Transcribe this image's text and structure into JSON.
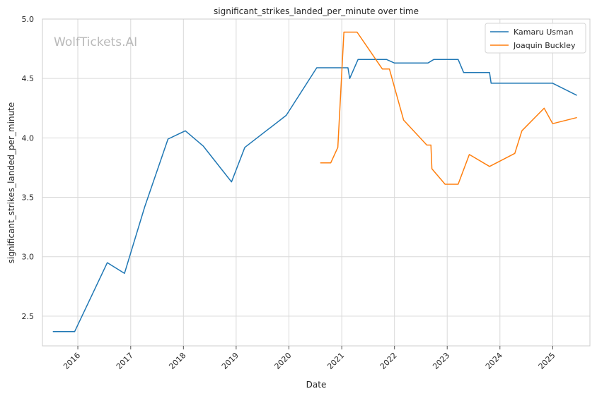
{
  "watermark": "WolfTickets.AI",
  "chart_data": {
    "type": "line",
    "title": "significant_strikes_landed_per_minute over time",
    "xlabel": "Date",
    "ylabel": "significant_strikes_landed_per_minute",
    "xlim": [
      "2015-05-01",
      "2025-09-15"
    ],
    "ylim": [
      2.25,
      5.0
    ],
    "x_ticks": [
      "2016",
      "2017",
      "2018",
      "2019",
      "2020",
      "2021",
      "2022",
      "2023",
      "2024",
      "2025"
    ],
    "y_ticks": [
      "2.5",
      "3.0",
      "3.5",
      "4.0",
      "4.5",
      "5.0"
    ],
    "grid": true,
    "legend_position": "top-right",
    "series": [
      {
        "name": "Kamaru Usman",
        "color": "#1f77b4",
        "points": [
          [
            "2015-07-15",
            2.37
          ],
          [
            "2015-12-10",
            2.37
          ],
          [
            "2016-07-23",
            2.95
          ],
          [
            "2016-11-19",
            2.86
          ],
          [
            "2017-04-08",
            3.42
          ],
          [
            "2017-09-16",
            3.99
          ],
          [
            "2018-01-14",
            4.06
          ],
          [
            "2018-05-19",
            3.93
          ],
          [
            "2018-11-30",
            3.63
          ],
          [
            "2019-03-02",
            3.92
          ],
          [
            "2019-12-14",
            4.19
          ],
          [
            "2020-07-12",
            4.59
          ],
          [
            "2021-02-13",
            4.59
          ],
          [
            "2021-02-25",
            4.5
          ],
          [
            "2021-04-24",
            4.66
          ],
          [
            "2021-11-06",
            4.66
          ],
          [
            "2022-01-01",
            4.63
          ],
          [
            "2022-08-20",
            4.63
          ],
          [
            "2022-10-01",
            4.66
          ],
          [
            "2023-03-18",
            4.66
          ],
          [
            "2023-04-25",
            4.55
          ],
          [
            "2023-10-21",
            4.55
          ],
          [
            "2023-11-01",
            4.46
          ],
          [
            "2024-12-31",
            4.46
          ],
          [
            "2025-06-14",
            4.36
          ]
        ]
      },
      {
        "name": "Joaquin Buckley",
        "color": "#ff7f0e",
        "points": [
          [
            "2020-08-08",
            3.79
          ],
          [
            "2020-10-17",
            3.79
          ],
          [
            "2020-12-05",
            3.92
          ],
          [
            "2021-01-16",
            4.89
          ],
          [
            "2021-04-17",
            4.89
          ],
          [
            "2021-10-09",
            4.58
          ],
          [
            "2021-11-27",
            4.58
          ],
          [
            "2022-03-05",
            4.15
          ],
          [
            "2022-08-13",
            3.94
          ],
          [
            "2022-09-10",
            3.94
          ],
          [
            "2022-09-17",
            3.74
          ],
          [
            "2022-12-17",
            3.61
          ],
          [
            "2023-03-18",
            3.61
          ],
          [
            "2023-06-03",
            3.86
          ],
          [
            "2023-10-21",
            3.76
          ],
          [
            "2024-04-13",
            3.87
          ],
          [
            "2024-06-01",
            4.06
          ],
          [
            "2024-11-02",
            4.25
          ],
          [
            "2024-12-31",
            4.12
          ],
          [
            "2025-06-14",
            4.17
          ]
        ]
      }
    ]
  }
}
